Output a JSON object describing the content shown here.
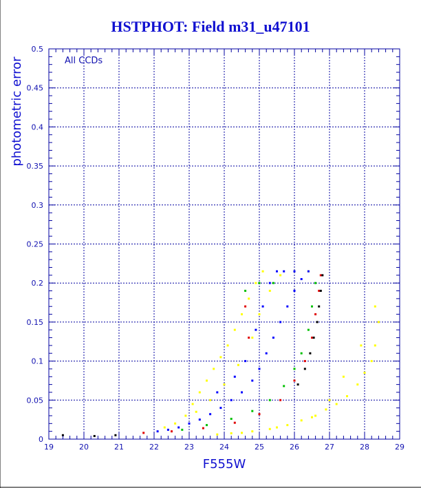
{
  "chart_data": {
    "type": "scatter",
    "title": "HSTPHOT: Field m31_u47101",
    "xlabel": "F555W",
    "ylabel": "photometric error",
    "annotation": "All CCDs",
    "xlim": [
      19,
      29
    ],
    "ylim": [
      0,
      0.5
    ],
    "x_ticks": [
      "19",
      "20",
      "21",
      "22",
      "23",
      "24",
      "25",
      "26",
      "27",
      "28",
      "29"
    ],
    "y_ticks": [
      "0",
      "0.05",
      "0.1",
      "0.15",
      "0.2",
      "0.25",
      "0.3",
      "0.35",
      "0.4",
      "0.45",
      "0.5"
    ],
    "grid": true,
    "colors": {
      "background": "#ffffff",
      "frame": "#0000a0",
      "text": "#1010d0",
      "yellow": "#ffff00",
      "blue": "#0000ff",
      "green": "#00c000",
      "red": "#e00000",
      "black": "#000000"
    },
    "series": [
      {
        "color": "yellow",
        "points": [
          [
            22.3,
            0.015
          ],
          [
            22.6,
            0.02
          ],
          [
            22.9,
            0.03
          ],
          [
            23.1,
            0.045
          ],
          [
            23.3,
            0.06
          ],
          [
            23.5,
            0.075
          ],
          [
            23.7,
            0.09
          ],
          [
            23.9,
            0.105
          ],
          [
            24.1,
            0.12
          ],
          [
            24.3,
            0.14
          ],
          [
            24.5,
            0.16
          ],
          [
            24.7,
            0.18
          ],
          [
            24.9,
            0.2
          ],
          [
            25.1,
            0.215
          ],
          [
            23.2,
            0.035
          ],
          [
            23.6,
            0.05
          ],
          [
            24.0,
            0.07
          ],
          [
            24.4,
            0.095
          ],
          [
            24.8,
            0.13
          ],
          [
            25.0,
            0.16
          ],
          [
            25.3,
            0.19
          ],
          [
            25.6,
            0.21
          ],
          [
            26.0,
            0.215
          ],
          [
            26.4,
            0.215
          ],
          [
            24.2,
            0.0075
          ],
          [
            24.8,
            0.01
          ],
          [
            25.3,
            0.013
          ],
          [
            25.8,
            0.018
          ],
          [
            26.2,
            0.024
          ],
          [
            26.6,
            0.03
          ],
          [
            26.9,
            0.038
          ],
          [
            27.2,
            0.045
          ],
          [
            27.5,
            0.055
          ],
          [
            27.8,
            0.07
          ],
          [
            28.0,
            0.085
          ],
          [
            28.2,
            0.1
          ],
          [
            28.3,
            0.12
          ],
          [
            28.4,
            0.15
          ],
          [
            28.3,
            0.17
          ],
          [
            27.9,
            0.12
          ],
          [
            27.4,
            0.08
          ],
          [
            27.0,
            0.05
          ],
          [
            26.5,
            0.028
          ],
          [
            25.5,
            0.015
          ],
          [
            24.5,
            0.008
          ],
          [
            23.8,
            0.006
          ]
        ]
      },
      {
        "color": "blue",
        "points": [
          [
            22.1,
            0.01
          ],
          [
            22.4,
            0.012
          ],
          [
            22.7,
            0.015
          ],
          [
            23.0,
            0.02
          ],
          [
            23.3,
            0.025
          ],
          [
            23.6,
            0.032
          ],
          [
            23.9,
            0.04
          ],
          [
            24.2,
            0.05
          ],
          [
            24.5,
            0.06
          ],
          [
            24.8,
            0.075
          ],
          [
            25.0,
            0.09
          ],
          [
            25.2,
            0.11
          ],
          [
            25.4,
            0.13
          ],
          [
            25.6,
            0.15
          ],
          [
            25.8,
            0.17
          ],
          [
            26.0,
            0.19
          ],
          [
            26.2,
            0.205
          ],
          [
            26.4,
            0.215
          ],
          [
            24.6,
            0.1
          ],
          [
            24.9,
            0.14
          ],
          [
            25.1,
            0.17
          ],
          [
            25.3,
            0.2
          ],
          [
            25.5,
            0.215
          ],
          [
            23.8,
            0.06
          ],
          [
            24.3,
            0.08
          ],
          [
            25.7,
            0.215
          ],
          [
            26.0,
            0.215
          ]
        ]
      },
      {
        "color": "green",
        "points": [
          [
            22.8,
            0.012
          ],
          [
            23.5,
            0.018
          ],
          [
            24.2,
            0.026
          ],
          [
            24.8,
            0.036
          ],
          [
            25.3,
            0.05
          ],
          [
            25.7,
            0.068
          ],
          [
            26.0,
            0.09
          ],
          [
            26.2,
            0.11
          ],
          [
            26.4,
            0.14
          ],
          [
            26.5,
            0.17
          ],
          [
            26.6,
            0.2
          ],
          [
            24.6,
            0.19
          ],
          [
            25.0,
            0.2
          ],
          [
            25.4,
            0.2
          ]
        ]
      },
      {
        "color": "red",
        "points": [
          [
            21.7,
            0.008
          ],
          [
            22.5,
            0.01
          ],
          [
            23.4,
            0.014
          ],
          [
            24.3,
            0.021
          ],
          [
            25.0,
            0.032
          ],
          [
            25.6,
            0.05
          ],
          [
            26.0,
            0.075
          ],
          [
            26.3,
            0.1
          ],
          [
            26.5,
            0.13
          ],
          [
            26.6,
            0.16
          ],
          [
            26.7,
            0.19
          ],
          [
            26.75,
            0.21
          ],
          [
            24.6,
            0.17
          ],
          [
            24.7,
            0.13
          ]
        ]
      },
      {
        "color": "black",
        "points": [
          [
            26.1,
            0.07
          ],
          [
            26.3,
            0.09
          ],
          [
            26.45,
            0.11
          ],
          [
            26.55,
            0.13
          ],
          [
            26.65,
            0.15
          ],
          [
            26.7,
            0.17
          ],
          [
            26.75,
            0.19
          ],
          [
            26.8,
            0.21
          ],
          [
            19.4,
            0.005
          ],
          [
            20.3,
            0.004
          ],
          [
            20.9,
            0.005
          ]
        ]
      }
    ]
  }
}
